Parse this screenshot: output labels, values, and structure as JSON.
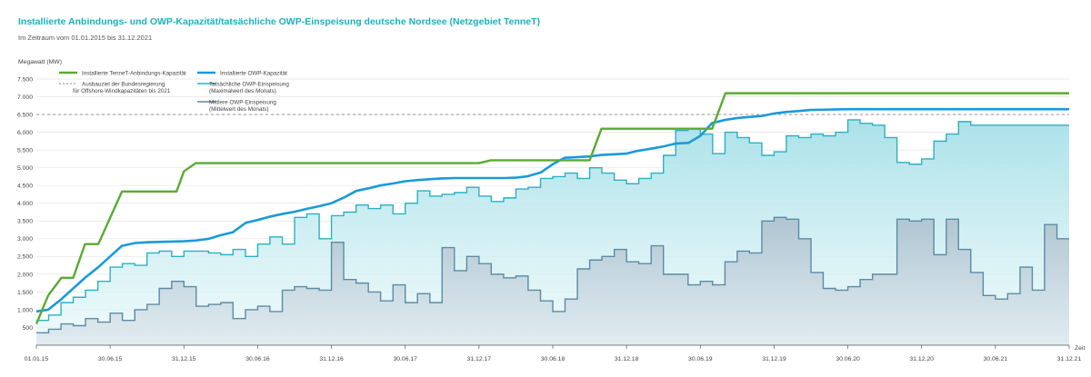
{
  "header": {
    "title": "Installierte Anbindungs- und OWP-Kapazität/tatsächliche OWP-Einspeisung deutsche Nordsee (Netzgebiet TenneT)",
    "subtitle": "Im Zeitraum vom 01.01.2015 bis 31.12.2021"
  },
  "chart_data": {
    "type": "line",
    "ylabel": "Megawatt (MW)",
    "xlabel": "Zeit",
    "ylim": [
      0,
      7500
    ],
    "xlim": [
      2015.0,
      2022.0
    ],
    "yticks": [
      500,
      1000,
      1500,
      2000,
      2500,
      3000,
      3500,
      4000,
      4500,
      5000,
      5500,
      6000,
      6500,
      7000,
      7500
    ],
    "ytick_labels": [
      "500",
      "1.000",
      "1.500",
      "2.000",
      "2.500",
      "3.000",
      "3.500",
      "4.000",
      "4.500",
      "5.000",
      "5.500",
      "6.000",
      "6.500",
      "7.000",
      "7.500"
    ],
    "xticks": [
      {
        "x": 2015.0,
        "label": "01.01.15"
      },
      {
        "x": 2015.5,
        "label": "30.06.15"
      },
      {
        "x": 2016.0,
        "label": "31.12.15"
      },
      {
        "x": 2016.5,
        "label": "30.06.16"
      },
      {
        "x": 2017.0,
        "label": "31.12.16"
      },
      {
        "x": 2017.5,
        "label": "30.06.17"
      },
      {
        "x": 2018.0,
        "label": "31.12.17"
      },
      {
        "x": 2018.5,
        "label": "30.06.18"
      },
      {
        "x": 2019.0,
        "label": "31.12.18"
      },
      {
        "x": 2019.5,
        "label": "30.06.19"
      },
      {
        "x": 2020.0,
        "label": "31.12.19"
      },
      {
        "x": 2020.5,
        "label": "30.06.20"
      },
      {
        "x": 2021.0,
        "label": "31.12.20"
      },
      {
        "x": 2021.5,
        "label": "30.06.21"
      },
      {
        "x": 2022.0,
        "label": "31.12.21"
      }
    ],
    "grid": "horizontal",
    "legend_position": "top-left",
    "series": [
      {
        "name": "Installierte TenneT-Anbindungs-Kapazität",
        "style": "line",
        "color": "#5aaa32",
        "x": [
          2015.0,
          2015.08,
          2015.17,
          2015.25,
          2015.33,
          2015.42,
          2015.58,
          2015.95,
          2016.0,
          2016.08,
          2016.5,
          2017.5,
          2018.0,
          2018.08,
          2018.5,
          2018.75,
          2018.83,
          2019.58,
          2019.67,
          2022.0
        ],
        "y": [
          600,
          1400,
          1900,
          1900,
          2850,
          2850,
          4330,
          4330,
          4900,
          5130,
          5130,
          5130,
          5130,
          5210,
          5210,
          5210,
          6100,
          6100,
          7100,
          7100
        ]
      },
      {
        "name": "Installierte OWP-Kapazität",
        "style": "line",
        "color": "#1a9ad9",
        "x": [
          2015.0,
          2015.08,
          2015.17,
          2015.25,
          2015.33,
          2015.42,
          2015.5,
          2015.58,
          2015.67,
          2015.75,
          2015.83,
          2015.92,
          2016.0,
          2016.08,
          2016.17,
          2016.25,
          2016.33,
          2016.42,
          2016.5,
          2016.58,
          2016.67,
          2016.75,
          2016.83,
          2016.92,
          2017.0,
          2017.08,
          2017.17,
          2017.25,
          2017.33,
          2017.42,
          2017.5,
          2017.58,
          2017.67,
          2017.75,
          2017.83,
          2017.92,
          2018.0,
          2018.08,
          2018.17,
          2018.25,
          2018.33,
          2018.42,
          2018.5,
          2018.58,
          2018.67,
          2018.75,
          2018.83,
          2018.92,
          2019.0,
          2019.08,
          2019.17,
          2019.25,
          2019.33,
          2019.42,
          2019.5,
          2019.58,
          2019.67,
          2019.75,
          2019.83,
          2019.92,
          2020.0,
          2020.08,
          2020.17,
          2020.25,
          2020.5,
          2021.0,
          2022.0
        ],
        "y": [
          950,
          1000,
          1300,
          1600,
          1900,
          2200,
          2500,
          2800,
          2880,
          2900,
          2910,
          2920,
          2930,
          2950,
          3000,
          3100,
          3180,
          3450,
          3530,
          3620,
          3700,
          3760,
          3840,
          3920,
          4000,
          4150,
          4350,
          4420,
          4500,
          4560,
          4620,
          4650,
          4680,
          4700,
          4710,
          4710,
          4710,
          4710,
          4710,
          4720,
          4760,
          4870,
          5100,
          5280,
          5300,
          5320,
          5360,
          5380,
          5400,
          5480,
          5540,
          5600,
          5680,
          5700,
          5900,
          6260,
          6350,
          6400,
          6430,
          6460,
          6530,
          6570,
          6600,
          6630,
          6650,
          6650,
          6650
        ]
      },
      {
        "name": "Ausbauziel der Bundesregierung für Offshore-Windkapazitäten bis 2021",
        "style": "dashed",
        "color": "#888888",
        "x": [
          2015.0,
          2022.0
        ],
        "y": [
          6500,
          6500
        ]
      },
      {
        "name": "Tatsächliche OWP-Einspeisung (Maximalwert des Monats)",
        "style": "step",
        "color": "#2ab1c2",
        "fill": "#b9e6ec",
        "x": [
          2015.0,
          2015.083,
          2015.167,
          2015.25,
          2015.333,
          2015.417,
          2015.5,
          2015.583,
          2015.667,
          2015.75,
          2015.833,
          2015.917,
          2016.0,
          2016.083,
          2016.167,
          2016.25,
          2016.333,
          2016.417,
          2016.5,
          2016.583,
          2016.667,
          2016.75,
          2016.833,
          2016.917,
          2017.0,
          2017.083,
          2017.167,
          2017.25,
          2017.333,
          2017.417,
          2017.5,
          2017.583,
          2017.667,
          2017.75,
          2017.833,
          2017.917,
          2018.0,
          2018.083,
          2018.167,
          2018.25,
          2018.333,
          2018.417,
          2018.5,
          2018.583,
          2018.667,
          2018.75,
          2018.833,
          2018.917,
          2019.0,
          2019.083,
          2019.167,
          2019.25,
          2019.333,
          2019.417,
          2019.5,
          2019.583,
          2019.667,
          2019.75,
          2019.833,
          2019.917,
          2020.0,
          2020.083,
          2020.167,
          2020.25,
          2020.333,
          2020.417,
          2020.5,
          2020.583,
          2020.667,
          2020.75,
          2020.833,
          2020.917,
          2021.0,
          2021.083,
          2021.167,
          2021.25,
          2021.333,
          2021.417,
          2021.5,
          2021.583,
          2021.667,
          2021.75,
          2021.833,
          2021.917
        ],
        "y": [
          700,
          850,
          1200,
          1350,
          1550,
          1800,
          2200,
          2300,
          2250,
          2600,
          2650,
          2500,
          2650,
          2650,
          2600,
          2550,
          2700,
          2500,
          2850,
          3050,
          2850,
          3600,
          3700,
          3000,
          3650,
          3750,
          3950,
          3850,
          3950,
          3700,
          4000,
          4350,
          4200,
          4250,
          4300,
          4450,
          4200,
          4050,
          4150,
          4400,
          4450,
          4700,
          4750,
          4850,
          4700,
          5000,
          4850,
          4650,
          4550,
          4700,
          4850,
          5350,
          6050,
          6100,
          5950,
          5400,
          6000,
          5850,
          5700,
          5350,
          5450,
          5900,
          5850,
          5950,
          5900,
          6000,
          6350,
          6250,
          6200,
          5850,
          5150,
          5100,
          5250,
          5750,
          5950,
          6300,
          6200,
          6200,
          6200,
          6200,
          6200,
          6200,
          6200,
          6200
        ]
      },
      {
        "name": "Mittlere OWP-Einspeisung (Mittelwert des Monats)",
        "style": "step",
        "color": "#5d8aa3",
        "fill": "#c4d3dd",
        "x": [
          2015.0,
          2015.083,
          2015.167,
          2015.25,
          2015.333,
          2015.417,
          2015.5,
          2015.583,
          2015.667,
          2015.75,
          2015.833,
          2015.917,
          2016.0,
          2016.083,
          2016.167,
          2016.25,
          2016.333,
          2016.417,
          2016.5,
          2016.583,
          2016.667,
          2016.75,
          2016.833,
          2016.917,
          2017.0,
          2017.083,
          2017.167,
          2017.25,
          2017.333,
          2017.417,
          2017.5,
          2017.583,
          2017.667,
          2017.75,
          2017.833,
          2017.917,
          2018.0,
          2018.083,
          2018.167,
          2018.25,
          2018.333,
          2018.417,
          2018.5,
          2018.583,
          2018.667,
          2018.75,
          2018.833,
          2018.917,
          2019.0,
          2019.083,
          2019.167,
          2019.25,
          2019.333,
          2019.417,
          2019.5,
          2019.583,
          2019.667,
          2019.75,
          2019.833,
          2019.917,
          2020.0,
          2020.083,
          2020.167,
          2020.25,
          2020.333,
          2020.417,
          2020.5,
          2020.583,
          2020.667,
          2020.75,
          2020.833,
          2020.917,
          2021.0,
          2021.083,
          2021.167,
          2021.25,
          2021.333,
          2021.417,
          2021.5,
          2021.583,
          2021.667,
          2021.75,
          2021.833,
          2021.917
        ],
        "y": [
          350,
          450,
          600,
          550,
          750,
          650,
          900,
          700,
          1000,
          1150,
          1600,
          1800,
          1650,
          1100,
          1150,
          1200,
          750,
          1000,
          1100,
          950,
          1550,
          1650,
          1600,
          1550,
          2900,
          1850,
          1750,
          1500,
          1250,
          1700,
          1200,
          1450,
          1200,
          2750,
          2100,
          2500,
          2300,
          2000,
          1900,
          1950,
          1550,
          1250,
          950,
          1300,
          2150,
          2400,
          2500,
          2700,
          2350,
          2300,
          2800,
          2000,
          2000,
          1700,
          1800,
          1700,
          2350,
          2650,
          2600,
          3500,
          3600,
          3550,
          3000,
          2050,
          1600,
          1550,
          1650,
          1850,
          2000,
          2000,
          3550,
          3500,
          3550,
          2550,
          3550,
          2700,
          2050,
          1400,
          1300,
          1450,
          2200,
          1550,
          3400,
          3000
        ]
      }
    ]
  },
  "legend": {
    "items": [
      {
        "label": "Installierte TenneT-Anbindungs-Kapazität"
      },
      {
        "label": "Installierte OWP-Kapazität"
      },
      {
        "line1": "Ausbauziel der Bundesregierung",
        "line2": "für Offshore-Windkapazitäten bis 2021"
      },
      {
        "line1": "Tatsächliche OWP-Einspeisung",
        "line2": "(Maximalwert des Monats)"
      },
      {
        "line1": "Mittlere OWP-Einspeisung",
        "line2": "(Mittelwert des Monats)"
      }
    ]
  }
}
